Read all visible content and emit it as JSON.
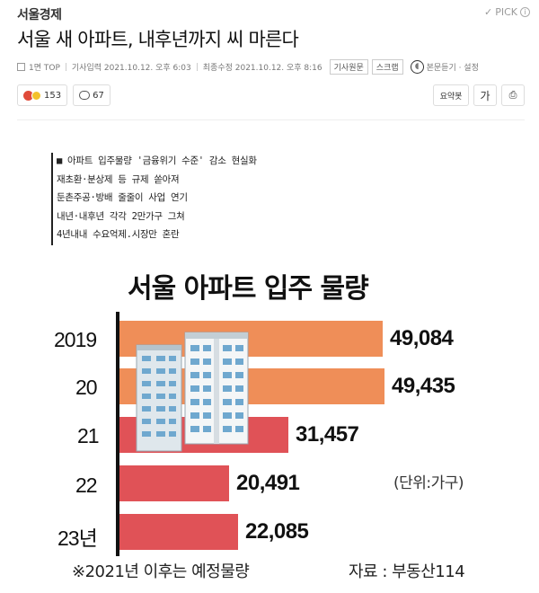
{
  "header": {
    "press_name": "서울경제",
    "pick_label": "PICK",
    "headline": "서울 새 아파트, 내후년까지 씨 마른다"
  },
  "meta": {
    "section": "1면 TOP",
    "published": "기사입력 2021.10.12. 오후 6:03",
    "modified": "최종수정 2021.10.12. 오후 8:16",
    "original_button": "기사원문",
    "scrap_button": "스크랩",
    "tts_label": "본문듣기 · 설정"
  },
  "reactions": {
    "emotion_count": "153",
    "comment_count": "67"
  },
  "tools": {
    "summary": "요약봇",
    "font": "가",
    "print": "⎙"
  },
  "article": {
    "subheads": [
      "■ 아파트 입주물량 '금융위기 수준' 감소 현실화",
      "재초환·분상제 등 규제 쏟아져",
      "둔촌주공·방배 줄줄이 사업 연기",
      "내년·내후년 각각 2만가구 그쳐",
      "4년내내 수요억제.시장만 혼란"
    ]
  },
  "chart_data": {
    "type": "bar",
    "orientation": "horizontal",
    "title": "서울 아파트 입주 물량",
    "categories": [
      "2019",
      "20",
      "21",
      "22",
      "23년"
    ],
    "values": [
      49084,
      49435,
      31457,
      20491,
      22085
    ],
    "value_labels": [
      "49,084",
      "49,435",
      "31,457",
      "20,491",
      "22,085"
    ],
    "unit": "(단위:가구)",
    "footnote": "※2021년 이후는 예정물량",
    "source": "자료 : 부동산114",
    "colors": {
      "actual": "#ef8e58",
      "forecast": "#e05257"
    },
    "bar_colors": [
      "#ef8e58",
      "#ef8e58",
      "#e05257",
      "#e05257",
      "#e05257"
    ],
    "grid": false,
    "legend": "none"
  }
}
